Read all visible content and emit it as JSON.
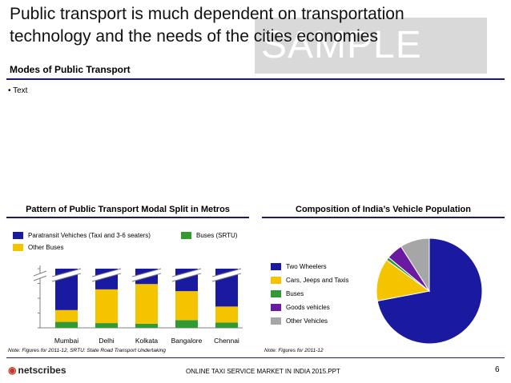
{
  "slide": {
    "title": "Public transport is much dependent on transportation technology and the needs of the cities economies",
    "watermark": "SAMPLE",
    "section_title": "Modes of Public Transport",
    "bullet": "• Text"
  },
  "left_chart": {
    "heading": "Pattern of Public Transport Modal Split in Metros",
    "note": "Note: Figures for 2011-12, SRTU: State Road Transport Undertaking"
  },
  "right_chart": {
    "heading": "Composition of India’s Vehicle Population",
    "note": "Note: Figures for 2011-12"
  },
  "footer": {
    "logo": "netscribes",
    "text": "ONLINE TAXI SERVICE MARKET IN INDIA 2015.PPT",
    "page": "6"
  },
  "chart_data": [
    {
      "type": "bar",
      "stacked": true,
      "categories": [
        "Mumbai",
        "Delhi",
        "Kolkata",
        "Bangalore",
        "Chennai"
      ],
      "series": [
        {
          "name": "Buses (SRTU)",
          "color": "#339933",
          "values": [
            10,
            8,
            7,
            13,
            9
          ]
        },
        {
          "name": "Other Buses",
          "color": "#f5c400",
          "values": [
            20,
            57,
            67,
            49,
            27
          ]
        },
        {
          "name": "Paratransit Vehiches (Taxi and 3-6 seaters)",
          "color": "#1a1aa0",
          "values": [
            70,
            35,
            26,
            38,
            64
          ]
        }
      ],
      "ylim": [
        0,
        100
      ],
      "axis_break": true
    },
    {
      "type": "pie",
      "series": [
        {
          "name": "Two Wheelers",
          "color": "#1a1aa0",
          "value": 72
        },
        {
          "name": "Cars, Jeeps and Taxis",
          "color": "#f5c400",
          "value": 13
        },
        {
          "name": "Buses",
          "color": "#339933",
          "value": 1
        },
        {
          "name": "Goods vehicles",
          "color": "#6a1aa0",
          "value": 5
        },
        {
          "name": "Other Vehicles",
          "color": "#a6a6a6",
          "value": 9
        }
      ]
    }
  ]
}
